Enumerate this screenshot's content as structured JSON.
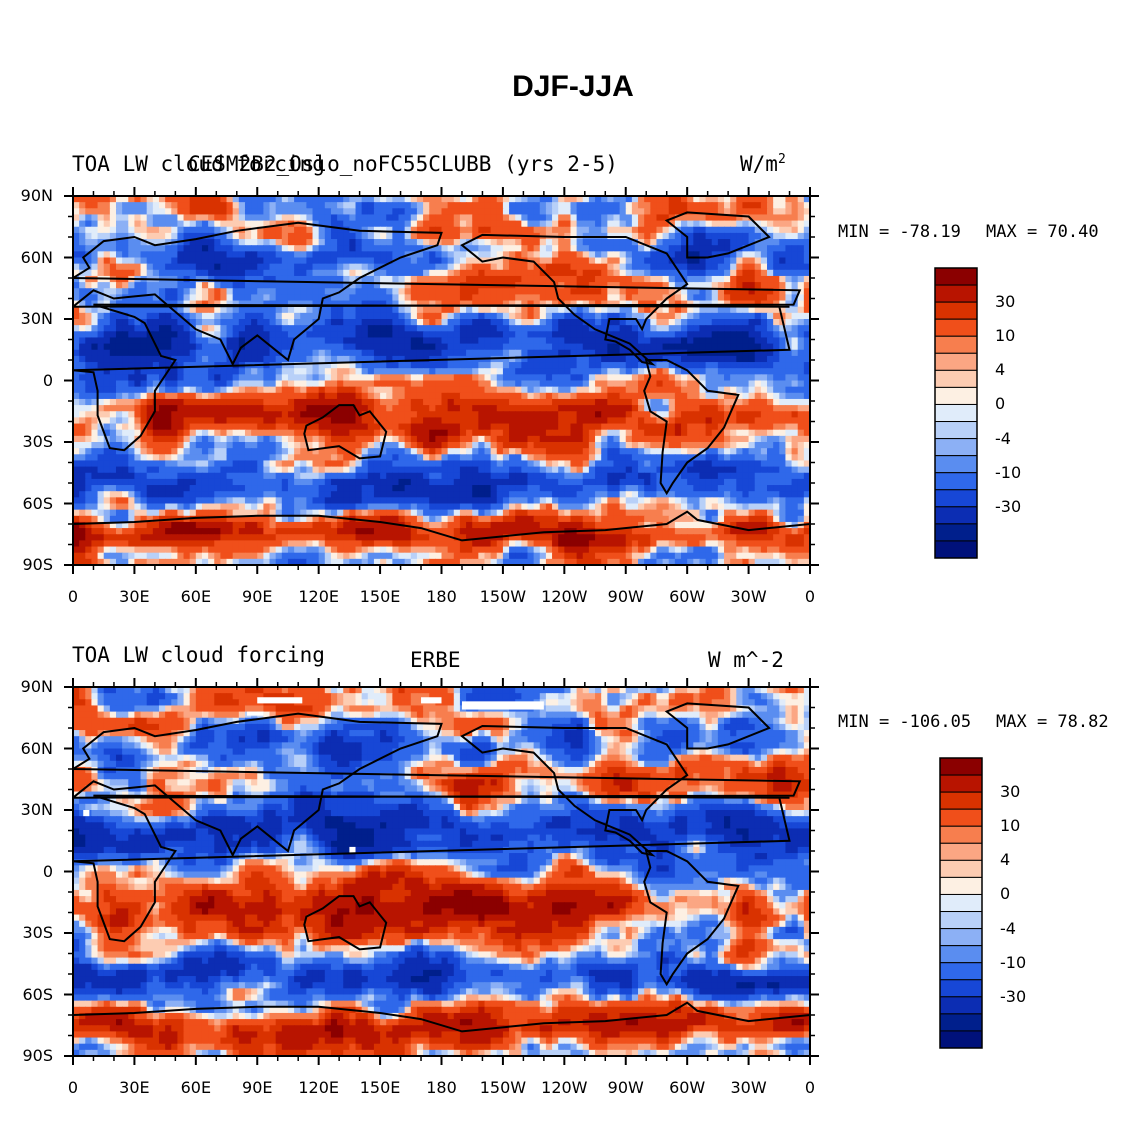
{
  "title": "DJF-JJA",
  "colorbar_colors": [
    "#8b0000",
    "#b81400",
    "#d93200",
    "#f04f1a",
    "#f77e4e",
    "#fba683",
    "#fdccb2",
    "#fdf0e3",
    "#e0ecfa",
    "#b8d0f8",
    "#8cb0f5",
    "#5a8df0",
    "#2f68ea",
    "#1747d6",
    "#0c2db3",
    "#001f8c",
    "#00117a"
  ],
  "land_color": "#000000",
  "chart_data": [
    {
      "type": "heatmap",
      "title_left": "TOA LW cloud forcing",
      "title_center": "CESM2B2_Oslo_noFC55CLUBB (yrs 2-5)",
      "units": "W/m",
      "units_superscript": "2",
      "min_label": "MIN = -78.19",
      "max_label": "MAX =  70.40",
      "xticks": [
        "0",
        "30E",
        "60E",
        "90E",
        "120E",
        "150E",
        "180",
        "150W",
        "120W",
        "90W",
        "60W",
        "30W",
        "0"
      ],
      "yticks": [
        "90N",
        "60N",
        "30N",
        "0",
        "30S",
        "60S",
        "90S"
      ],
      "colorbar_labels": [
        "30",
        "10",
        "4",
        "0",
        "-4",
        "-10",
        "-30"
      ],
      "xlim": [
        0,
        360
      ],
      "ylim": [
        -90,
        90
      ]
    },
    {
      "type": "heatmap",
      "title_left": "TOA LW cloud forcing",
      "title_center": "ERBE",
      "units": "W m^-2",
      "units_superscript": "",
      "min_label": "MIN = -106.05",
      "max_label": "MAX =  78.82",
      "xticks": [
        "0",
        "30E",
        "60E",
        "90E",
        "120E",
        "150E",
        "180",
        "150W",
        "120W",
        "90W",
        "60W",
        "30W",
        "0"
      ],
      "yticks": [
        "90N",
        "60N",
        "30N",
        "0",
        "30S",
        "60S",
        "90S"
      ],
      "colorbar_labels": [
        "30",
        "10",
        "4",
        "0",
        "-4",
        "-10",
        "-30"
      ],
      "xlim": [
        0,
        360
      ],
      "ylim": [
        -90,
        90
      ]
    }
  ]
}
